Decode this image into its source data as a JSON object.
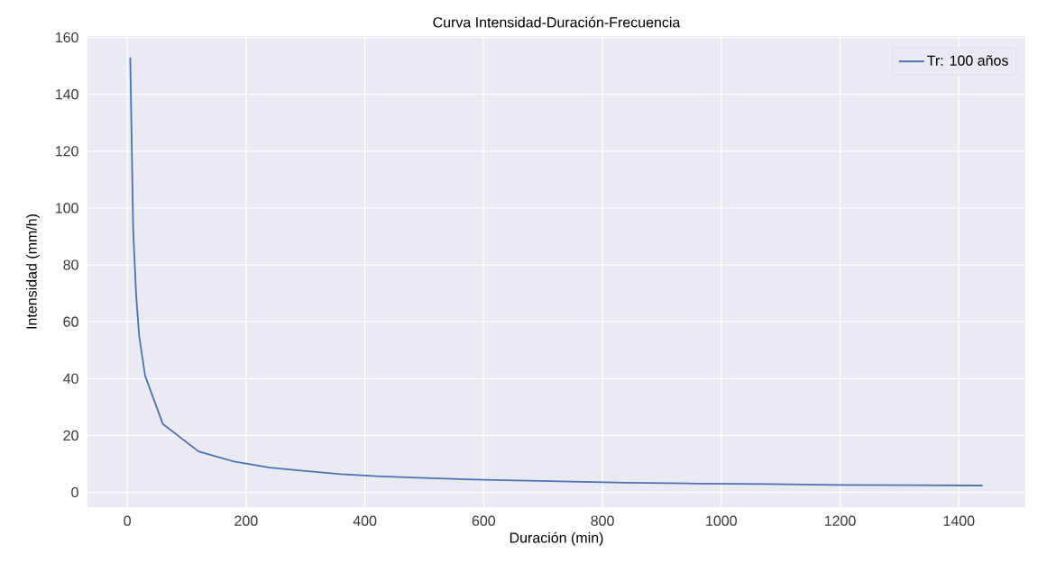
{
  "chart_data": {
    "type": "line",
    "title": "Curva Intensidad-Duración-Frecuencia",
    "xlabel": "Duración (min)",
    "ylabel": "Intensidad (mm/h)",
    "x": [
      5,
      10,
      15,
      20,
      30,
      60,
      120,
      180,
      240,
      300,
      360,
      420,
      480,
      540,
      600,
      720,
      840,
      960,
      1080,
      1200,
      1320,
      1440
    ],
    "series": [
      {
        "name": "Tr: 100 años",
        "color": "#4c72b0",
        "values": [
          153,
          92,
          69,
          55,
          41,
          24,
          14.4,
          10.8,
          8.7,
          7.5,
          6.4,
          5.7,
          5.2,
          4.8,
          4.4,
          3.9,
          3.4,
          3.1,
          2.9,
          2.6,
          2.5,
          2.4
        ]
      }
    ],
    "xlim": [
      -67,
      1512
    ],
    "ylim": [
      -5.2,
      160.5
    ],
    "xticks": [
      0,
      200,
      400,
      600,
      800,
      1000,
      1200,
      1400
    ],
    "yticks": [
      0,
      20,
      40,
      60,
      80,
      100,
      120,
      140,
      160
    ],
    "grid": true,
    "legend": "top right",
    "marker": "none",
    "line_style": "solid"
  }
}
